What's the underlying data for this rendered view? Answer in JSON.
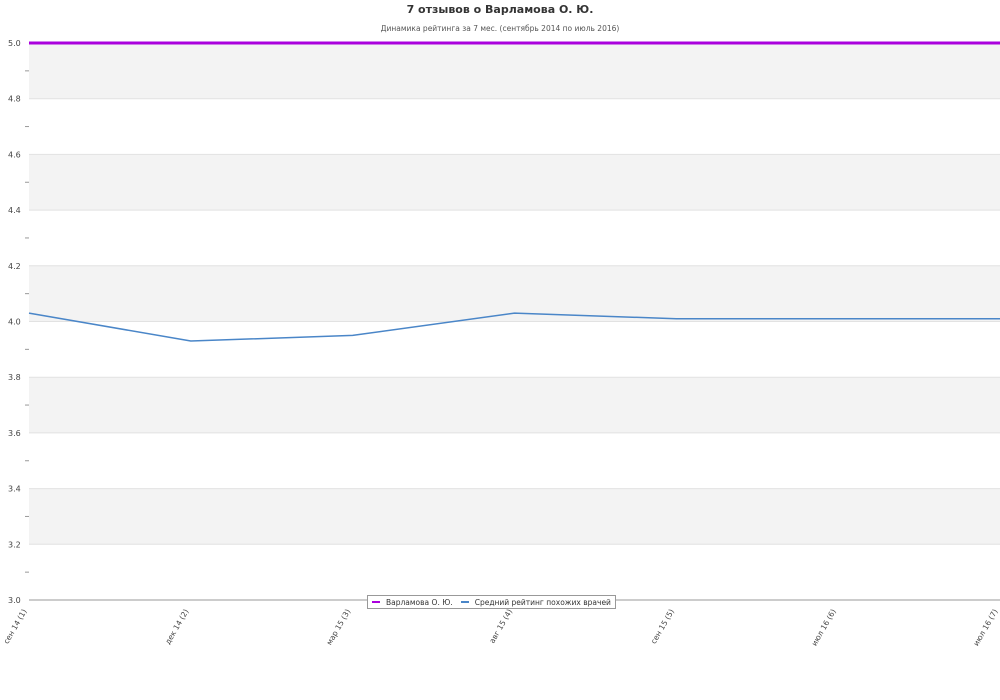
{
  "title": "7 отзывов о Варламова О. Ю.",
  "subtitle": "Динамика рейтинга за 7 мес. (сентябрь 2014 по июль 2016)",
  "legend": [
    {
      "label": "Варламова О. Ю.",
      "color": "#aa00dd"
    },
    {
      "label": "Средний рейтинг похожих врачей",
      "color": "#4a86c8"
    }
  ],
  "chart_data": {
    "type": "line",
    "title": "7 отзывов о Варламова О. Ю.",
    "subtitle": "Динамика рейтинга за 7 мес. (сентябрь 2014 по июль 2016)",
    "categories": [
      "сен 14 (1)",
      "дек 14 (2)",
      "мар 15 (3)",
      "авг 15 (4)",
      "сен 15 (5)",
      "июл 16 (6)",
      "июл 16 (7)"
    ],
    "series": [
      {
        "name": "Варламова О. Ю.",
        "color": "#aa00dd",
        "values": [
          5.0,
          5.0,
          5.0,
          5.0,
          5.0,
          5.0,
          5.0
        ]
      },
      {
        "name": "Средний рейтинг похожих врачей",
        "color": "#4a86c8",
        "values": [
          4.03,
          3.93,
          3.95,
          4.03,
          4.01,
          4.01,
          4.01
        ]
      }
    ],
    "ylim": [
      3.0,
      5.0
    ],
    "yticks": [
      "3.0",
      "3.2",
      "3.4",
      "3.6",
      "3.8",
      "4.0",
      "4.2",
      "4.4",
      "4.6",
      "4.8",
      "5.0"
    ],
    "grid": true,
    "legend_position": "bottom-center"
  }
}
